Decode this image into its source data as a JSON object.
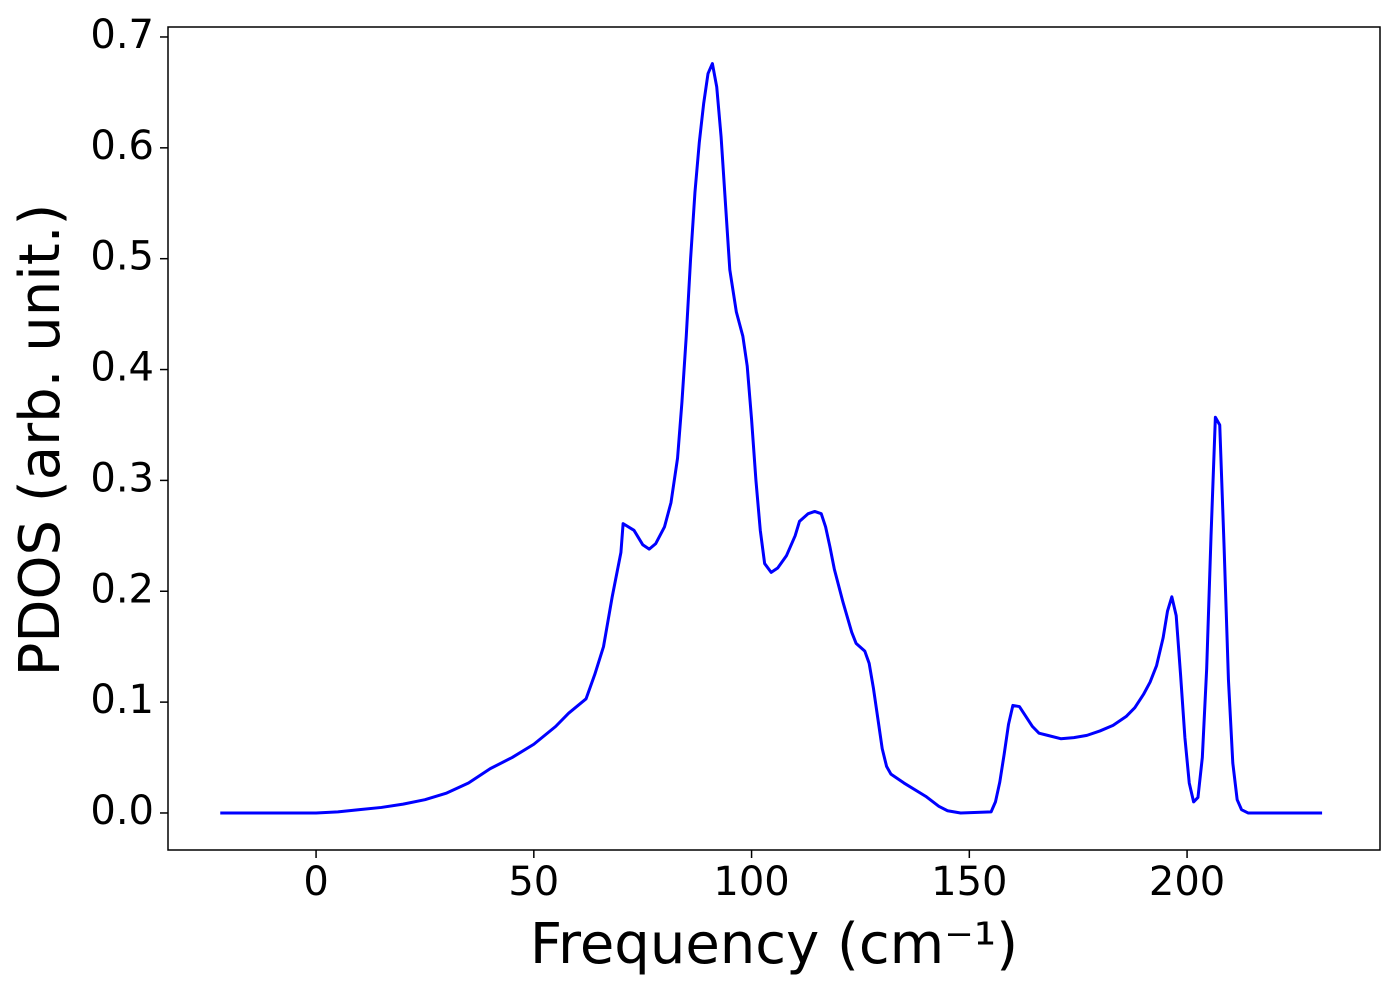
{
  "chart_data": {
    "type": "line",
    "x_label": "Frequency (cm⁻¹)",
    "y_label": "PDOS (arb. unit.)",
    "xlim": [
      -34.0,
      244.3
    ],
    "ylim": [
      -0.0334,
      0.709
    ],
    "xticks": [
      0,
      50,
      100,
      150,
      200
    ],
    "yticks": [
      {
        "value": 0,
        "label": "0.0"
      },
      0.1,
      0.2,
      0.3,
      0.4,
      0.5,
      0.6,
      0.7
    ],
    "grid": false,
    "series": [
      {
        "color": "#0000ff",
        "x": [
          -22,
          0,
          5,
          10,
          15,
          20,
          25,
          30,
          35,
          40,
          45,
          50,
          55,
          58,
          62,
          64,
          66,
          68,
          70,
          70.5,
          73,
          75,
          76.5,
          78,
          80,
          81.5,
          83,
          84,
          85,
          86,
          87,
          88,
          89,
          90,
          91,
          92,
          93,
          95,
          96.5,
          98,
          99,
          100,
          101,
          102,
          103,
          104.5,
          106,
          108,
          110,
          111,
          113,
          114.5,
          116,
          117,
          118,
          119,
          121,
          123,
          124,
          126,
          127,
          128,
          129,
          130,
          131,
          132,
          135,
          140,
          143,
          145,
          148,
          155,
          156,
          157,
          158,
          159,
          160,
          161.5,
          163,
          164.5,
          166,
          168,
          171,
          174,
          177,
          180,
          183,
          186,
          188,
          190,
          191.5,
          193,
          194.5,
          195.5,
          196.5,
          197.5,
          198.5,
          199.5,
          200.5,
          201.5,
          202.5,
          203.5,
          204.5,
          205.5,
          206.5,
          207.5,
          208.5,
          209.5,
          210.5,
          211.5,
          212.5,
          214,
          231
        ],
        "values": [
          0,
          0,
          0.001,
          0.003,
          0.005,
          0.008,
          0.012,
          0.018,
          0.027,
          0.04,
          0.05,
          0.062,
          0.078,
          0.09,
          0.103,
          0.125,
          0.15,
          0.195,
          0.235,
          0.261,
          0.255,
          0.242,
          0.238,
          0.243,
          0.258,
          0.28,
          0.32,
          0.37,
          0.43,
          0.5,
          0.56,
          0.605,
          0.64,
          0.667,
          0.676,
          0.655,
          0.61,
          0.49,
          0.452,
          0.43,
          0.403,
          0.355,
          0.3,
          0.255,
          0.225,
          0.217,
          0.221,
          0.232,
          0.25,
          0.263,
          0.27,
          0.272,
          0.27,
          0.258,
          0.24,
          0.22,
          0.19,
          0.163,
          0.153,
          0.146,
          0.135,
          0.112,
          0.085,
          0.058,
          0.042,
          0.035,
          0.027,
          0.015,
          0.006,
          0.002,
          0,
          0.001,
          0.01,
          0.028,
          0.053,
          0.08,
          0.097,
          0.096,
          0.087,
          0.078,
          0.072,
          0.07,
          0.067,
          0.068,
          0.07,
          0.074,
          0.079,
          0.087,
          0.095,
          0.107,
          0.118,
          0.133,
          0.158,
          0.182,
          0.195,
          0.178,
          0.125,
          0.068,
          0.027,
          0.01,
          0.014,
          0.05,
          0.13,
          0.25,
          0.357,
          0.35,
          0.24,
          0.12,
          0.045,
          0.012,
          0.003,
          0,
          0
        ]
      }
    ]
  }
}
